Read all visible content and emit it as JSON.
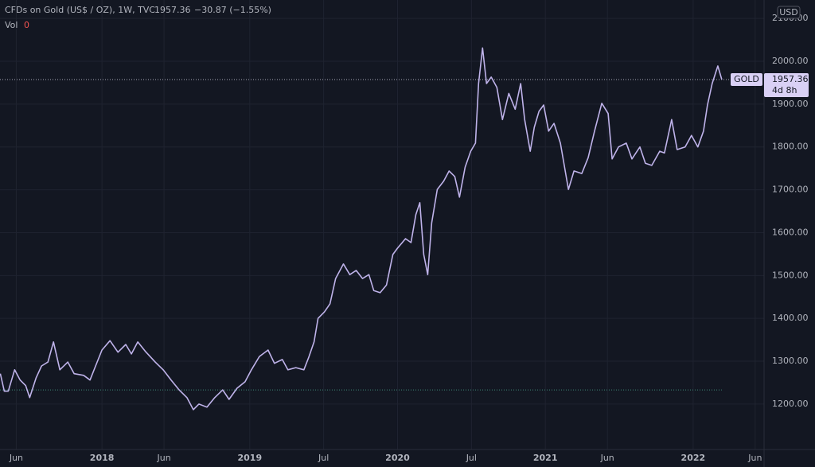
{
  "chart_data": {
    "type": "line",
    "title": "CFDs on Gold (US$ / OZ), 1W, TVC",
    "last_text": "1957.36",
    "change_text": "−30.87 (−1.55%)",
    "vol_label": "Vol",
    "vol_value": "0",
    "currency": "USD",
    "price_tag": "GOLD",
    "countdown": "4d 8h",
    "last_price": 1957.36,
    "start_line": 1233,
    "line_color": "#bfb3ea",
    "start_line_color": "#3f8a7a",
    "grid": true,
    "xlim": [
      2017.31,
      2022.48
    ],
    "ylim": [
      1094,
      2143
    ],
    "xticks": [
      {
        "value": 2017.42,
        "label": "Jun"
      },
      {
        "value": 2018,
        "label": "2018"
      },
      {
        "value": 2018.42,
        "label": "Jun"
      },
      {
        "value": 2019,
        "label": "2019"
      },
      {
        "value": 2019.5,
        "label": "Jul"
      },
      {
        "value": 2020,
        "label": "2020"
      },
      {
        "value": 2020.5,
        "label": "Jul"
      },
      {
        "value": 2021,
        "label": "2021"
      },
      {
        "value": 2021.42,
        "label": "Jun"
      },
      {
        "value": 2022,
        "label": "2022"
      },
      {
        "value": 2022.42,
        "label": "Jun"
      }
    ],
    "yticks": [
      {
        "value": 1200,
        "label": "1200.00"
      },
      {
        "value": 1300,
        "label": "1300.00"
      },
      {
        "value": 1400,
        "label": "1400.00"
      },
      {
        "value": 1500,
        "label": "1500.00"
      },
      {
        "value": 1600,
        "label": "1600.00"
      },
      {
        "value": 1700,
        "label": "1700.00"
      },
      {
        "value": 1800,
        "label": "1800.00"
      },
      {
        "value": 1900,
        "label": "1900.00"
      },
      {
        "value": 2000,
        "label": "2000.00"
      },
      {
        "value": 2100,
        "label": "2100.00"
      }
    ],
    "series": [
      {
        "name": "GOLD",
        "color": "#bfb3ea",
        "x": [
          2017.312,
          2017.339,
          2017.366,
          2017.409,
          2017.446,
          2017.484,
          2017.511,
          2017.554,
          2017.591,
          2017.634,
          2017.672,
          2017.715,
          2017.769,
          2017.812,
          2017.876,
          2017.919,
          2017.957,
          2018.0,
          2018.054,
          2018.108,
          2018.161,
          2018.199,
          2018.242,
          2018.296,
          2018.36,
          2018.414,
          2018.468,
          2018.522,
          2018.575,
          2018.618,
          2018.656,
          2018.71,
          2018.763,
          2018.817,
          2018.86,
          2018.914,
          2018.968,
          2019.011,
          2019.065,
          2019.124,
          2019.167,
          2019.22,
          2019.258,
          2019.312,
          2019.366,
          2019.398,
          2019.435,
          2019.462,
          2019.505,
          2019.543,
          2019.581,
          2019.634,
          2019.677,
          2019.72,
          2019.763,
          2019.806,
          2019.839,
          2019.882,
          2019.925,
          2019.968,
          2020.0,
          2020.054,
          2020.091,
          2020.124,
          2020.151,
          2020.177,
          2020.204,
          2020.231,
          2020.269,
          2020.312,
          2020.349,
          2020.387,
          2020.419,
          2020.457,
          2020.495,
          2020.527,
          2020.548,
          2020.575,
          2020.602,
          2020.634,
          2020.672,
          2020.71,
          2020.753,
          2020.796,
          2020.833,
          2020.86,
          2020.898,
          2020.925,
          2020.957,
          2020.989,
          2021.022,
          2021.059,
          2021.102,
          2021.156,
          2021.194,
          2021.247,
          2021.29,
          2021.333,
          2021.382,
          2021.425,
          2021.452,
          2021.495,
          2021.548,
          2021.586,
          2021.64,
          2021.677,
          2021.72,
          2021.774,
          2021.806,
          2021.855,
          2021.892,
          2021.946,
          2021.989,
          2022.032,
          2022.07,
          2022.097,
          2022.129,
          2022.167,
          2022.194
        ],
        "values": [
          1271,
          1230,
          1230,
          1280,
          1256,
          1243,
          1215,
          1261,
          1289,
          1298,
          1345,
          1280,
          1298,
          1271,
          1267,
          1256,
          1289,
          1326,
          1348,
          1321,
          1339,
          1317,
          1345,
          1322,
          1298,
          1280,
          1256,
          1233,
          1215,
          1187,
          1200,
          1193,
          1215,
          1233,
          1211,
          1237,
          1252,
          1280,
          1311,
          1326,
          1295,
          1304,
          1280,
          1285,
          1280,
          1308,
          1345,
          1400,
          1415,
          1434,
          1493,
          1527,
          1502,
          1512,
          1493,
          1502,
          1465,
          1460,
          1478,
          1549,
          1564,
          1586,
          1577,
          1642,
          1670,
          1549,
          1502,
          1623,
          1701,
          1720,
          1744,
          1731,
          1683,
          1753,
          1790,
          1809,
          1948,
          2031,
          1948,
          1963,
          1939,
          1864,
          1925,
          1888,
          1948,
          1864,
          1790,
          1846,
          1883,
          1898,
          1837,
          1855,
          1809,
          1701,
          1744,
          1738,
          1775,
          1837,
          1902,
          1878,
          1772,
          1800,
          1809,
          1772,
          1800,
          1762,
          1757,
          1790,
          1786,
          1864,
          1794,
          1800,
          1827,
          1800,
          1837,
          1898,
          1948,
          1989,
          1957.36
        ]
      }
    ]
  }
}
